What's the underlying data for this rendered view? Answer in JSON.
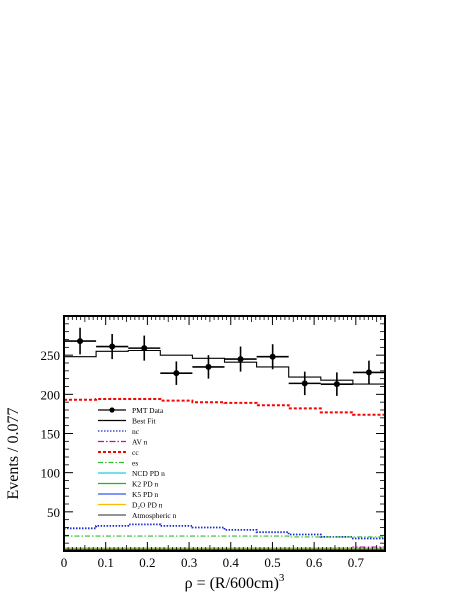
{
  "chart_data": {
    "type": "line",
    "title": "",
    "xlabel": "ρ = (R/600cm)",
    "xlabel_superscript": "3",
    "ylabel": "Events / 0.077",
    "xlim": [
      0,
      0.77
    ],
    "ylim": [
      0,
      300
    ],
    "x_ticks": [
      "0",
      "0.1",
      "0.2",
      "0.3",
      "0.4",
      "0.5",
      "0.6",
      "0.7"
    ],
    "y_ticks": [
      "50",
      "100",
      "150",
      "200",
      "250"
    ],
    "grid": false,
    "legend_position": "left",
    "bin_edges": [
      0,
      0.077,
      0.154,
      0.231,
      0.308,
      0.385,
      0.462,
      0.539,
      0.616,
      0.693,
      0.77
    ],
    "pmt_data": {
      "name": "PMT Data",
      "x": [
        0.0385,
        0.1155,
        0.1925,
        0.2695,
        0.3465,
        0.4235,
        0.5005,
        0.5775,
        0.6545,
        0.7315
      ],
      "y": [
        268,
        261,
        259,
        227,
        235,
        245,
        248,
        214,
        213,
        228
      ],
      "yerr": [
        17,
        16,
        16,
        15,
        15,
        16,
        16,
        15,
        15,
        15
      ]
    },
    "series": [
      {
        "name": "Best Fit",
        "color": "#000000",
        "dash": "",
        "values": [
          248,
          255,
          256,
          250,
          246,
          241,
          235,
          222,
          218,
          213
        ]
      },
      {
        "name": "nc",
        "color": "#1a2ad6",
        "dash": "1.5,1.5",
        "values": [
          29,
          32,
          34,
          32,
          30,
          27,
          24,
          21,
          18,
          16
        ]
      },
      {
        "name": "AV n",
        "color": "#cc00cc",
        "dash": "6,2,1.5,2",
        "values": [
          0.8,
          0.9,
          1,
          1,
          1.2,
          1.5,
          2,
          3,
          4,
          5
        ]
      },
      {
        "name": "cc",
        "color": "#ff0000",
        "dash": "3,2",
        "values": [
          193,
          194,
          194,
          192,
          190,
          189,
          186,
          182,
          177,
          174
        ]
      },
      {
        "name": "es",
        "color": "#33bb33",
        "dash": "5,2,1.5,2",
        "values": [
          19,
          19,
          19,
          19,
          19,
          19,
          19,
          18,
          18,
          18
        ]
      },
      {
        "name": "NCD PD n",
        "color": "#22ccdd",
        "dash": "",
        "values": [
          3,
          3,
          3,
          3,
          3,
          3,
          3,
          3,
          3,
          3
        ]
      },
      {
        "name": "K2 PD n",
        "color": "#00cc00",
        "dash": "",
        "values": [
          1,
          1,
          1,
          1,
          1,
          1,
          1,
          1,
          1,
          1
        ]
      },
      {
        "name": "K5 PD n",
        "color": "#3355ff",
        "dash": "",
        "values": [
          0.5,
          0.5,
          0.5,
          0.5,
          0.5,
          0.5,
          0.5,
          0.5,
          0.5,
          0.5
        ]
      },
      {
        "name": "D₂O PD n",
        "color": "#ffbb00",
        "dash": "",
        "values": [
          4,
          4,
          4,
          4,
          4,
          4,
          4,
          4,
          4,
          4
        ]
      },
      {
        "name": "Atmospheric n",
        "color": "#555555",
        "dash": "",
        "values": [
          2,
          2,
          2,
          2,
          2,
          2,
          2,
          2,
          2,
          2
        ]
      }
    ]
  }
}
